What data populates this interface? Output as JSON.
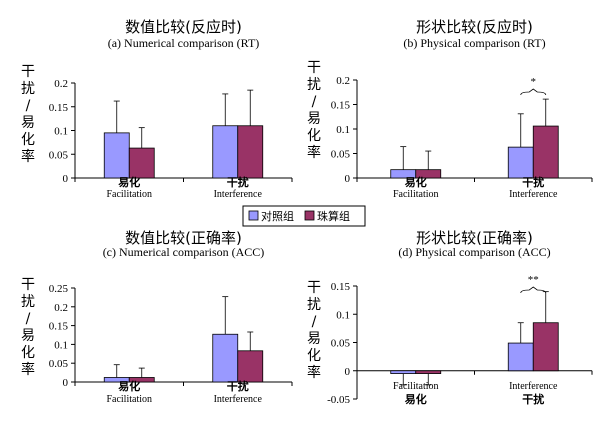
{
  "legend": {
    "items": [
      {
        "label": "对照组",
        "color": "#9999ff"
      },
      {
        "label": "珠算组",
        "color": "#993366"
      }
    ]
  },
  "chart_data": [
    {
      "type": "bar",
      "title": "数值比较(反应时)",
      "subtitle": "(a)  Numerical comparison (RT)",
      "ylabel": "干扰/易化率",
      "ylim": [
        0,
        0.2
      ],
      "yticks": [
        "0",
        "0.05",
        "0.1",
        "0.15",
        "0.2"
      ],
      "categories": [
        {
          "zh": "易化",
          "en": "Facilitation"
        },
        {
          "zh": "干扰",
          "en": "Interference"
        }
      ],
      "series": [
        {
          "name": "对照组",
          "color": "#9999ff",
          "values": [
            0.095,
            0.11
          ],
          "errors": [
            0.067,
            0.067
          ]
        },
        {
          "name": "珠算组",
          "color": "#993366",
          "values": [
            0.063,
            0.11
          ],
          "errors": [
            0.043,
            0.075
          ]
        }
      ],
      "annotations": []
    },
    {
      "type": "bar",
      "title": "形状比较(反应时)",
      "subtitle": "(b)  Physical comparison (RT)",
      "ylabel": "干扰/易化率",
      "ylim": [
        0,
        0.2
      ],
      "yticks": [
        "0",
        "0.05",
        "0.1",
        "0.15",
        "0.2"
      ],
      "categories": [
        {
          "zh": "易化",
          "en": "Facilitation"
        },
        {
          "zh": "干扰",
          "en": "Interference"
        }
      ],
      "series": [
        {
          "name": "对照组",
          "color": "#9999ff",
          "values": [
            0.017,
            0.063
          ],
          "errors": [
            0.047,
            0.068
          ]
        },
        {
          "name": "珠算组",
          "color": "#993366",
          "values": [
            0.017,
            0.106
          ],
          "errors": [
            0.038,
            0.055
          ]
        }
      ],
      "annotations": [
        {
          "text": "*",
          "category": 1
        }
      ]
    },
    {
      "type": "bar",
      "title": "数值比较(正确率)",
      "subtitle": "(c)  Numerical comparison (ACC)",
      "ylabel": "干扰/易化率",
      "ylim": [
        0,
        0.25
      ],
      "yticks": [
        "0",
        "0.05",
        "0.1",
        "0.15",
        "0.2",
        "0.25"
      ],
      "categories": [
        {
          "zh": "易化",
          "en": "Facilitation"
        },
        {
          "zh": "干扰",
          "en": "Interference"
        }
      ],
      "series": [
        {
          "name": "对照组",
          "color": "#9999ff",
          "values": [
            0.012,
            0.127
          ],
          "errors": [
            0.034,
            0.1
          ]
        },
        {
          "name": "珠算组",
          "color": "#993366",
          "values": [
            0.012,
            0.083
          ],
          "errors": [
            0.025,
            0.05
          ]
        }
      ],
      "annotations": []
    },
    {
      "type": "bar",
      "title": "形状比较(正确率)",
      "subtitle": "(d)  Physical comparison (ACC)",
      "ylabel": "干扰/易化率",
      "ylim": [
        -0.05,
        0.15
      ],
      "yticks": [
        "-0.05",
        "0",
        "0.05",
        "0.1",
        "0.15"
      ],
      "categories": [
        {
          "zh": "易化",
          "en": "Facilitation"
        },
        {
          "zh": "干扰",
          "en": "Interference"
        }
      ],
      "series": [
        {
          "name": "对照组",
          "color": "#9999ff",
          "values": [
            -0.005,
            0.049
          ],
          "errors": [
            0.02,
            0.036
          ]
        },
        {
          "name": "珠算组",
          "color": "#993366",
          "values": [
            -0.005,
            0.085
          ],
          "errors": [
            0.02,
            0.055
          ]
        }
      ],
      "annotations": [
        {
          "text": "**",
          "category": 1
        }
      ]
    }
  ]
}
